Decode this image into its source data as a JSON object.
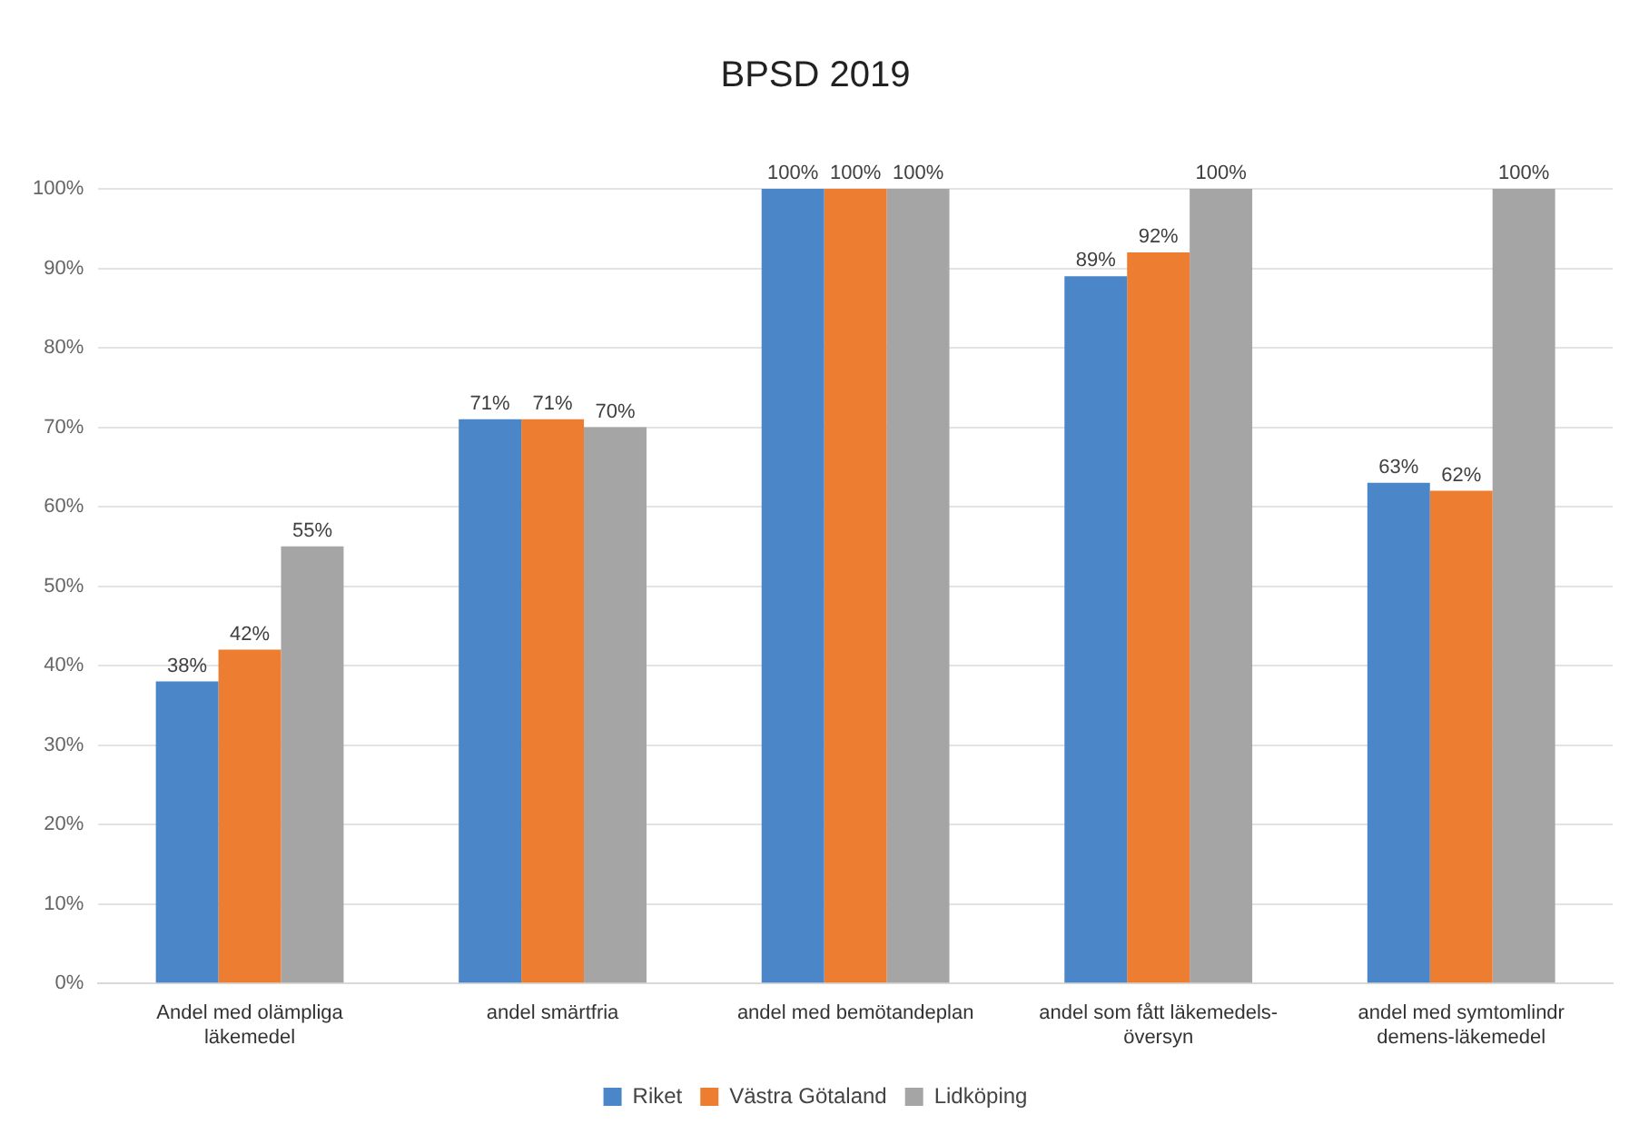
{
  "chart_data": {
    "type": "bar",
    "title": "BPSD 2019",
    "categories": [
      "Andel med olämpliga läkemedel",
      "andel smärtfria",
      "andel med bemötandeplan",
      "andel som fått läkemedels- översyn",
      "andel med symtomlindr demens-läkemedel"
    ],
    "series": [
      {
        "name": "Riket",
        "color": "#4a86c8",
        "values": [
          38,
          71,
          100,
          89,
          63
        ],
        "value_labels": [
          "38%",
          "71%",
          "100%",
          "89%",
          "63%"
        ]
      },
      {
        "name": "Västra Götaland",
        "color": "#ed7d31",
        "values": [
          42,
          71,
          100,
          92,
          62
        ],
        "value_labels": [
          "42%",
          "71%",
          "100%",
          "92%",
          "62%"
        ]
      },
      {
        "name": "Lidköping",
        "color": "#a5a5a5",
        "values": [
          55,
          70,
          100,
          100,
          100
        ],
        "value_labels": [
          "55%",
          "70%",
          "100%",
          "100%",
          "100%"
        ]
      }
    ],
    "ylim": [
      0,
      100
    ],
    "yticks": [
      {
        "value": 0,
        "label": "0%"
      },
      {
        "value": 10,
        "label": "10%"
      },
      {
        "value": 20,
        "label": "20%"
      },
      {
        "value": 30,
        "label": "30%"
      },
      {
        "value": 40,
        "label": "40%"
      },
      {
        "value": 50,
        "label": "50%"
      },
      {
        "value": 60,
        "label": "60%"
      },
      {
        "value": 70,
        "label": "70%"
      },
      {
        "value": 80,
        "label": "80%"
      },
      {
        "value": 90,
        "label": "90%"
      },
      {
        "value": 100,
        "label": "100%"
      }
    ],
    "grid": "y",
    "legend": "bottom"
  }
}
